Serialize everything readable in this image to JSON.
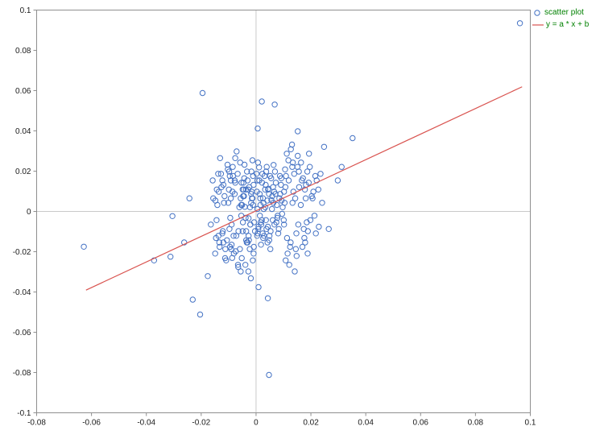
{
  "chart_data": {
    "type": "scatter",
    "title": "",
    "xlabel": "",
    "ylabel": "",
    "xlim": [
      -0.08,
      0.1
    ],
    "ylim": [
      -0.1,
      0.1
    ],
    "grid": "zero-lines-only",
    "legend_position": "top-right-outside",
    "legend_text_color": "#008000",
    "x_ticks": [
      -0.08,
      -0.06,
      -0.04,
      -0.02,
      0,
      0.02,
      0.04,
      0.06,
      0.08,
      0.1
    ],
    "x_tick_labels": [
      "-0.08",
      "-0.06",
      "-0.04",
      "-0.02",
      "0",
      "0.02",
      "0.04",
      "0.06",
      "0.08",
      "0.1"
    ],
    "y_ticks": [
      0.1,
      0.08,
      0.06,
      0.04,
      0.02,
      0,
      -0.02,
      -0.04,
      -0.06,
      -0.08,
      -0.1
    ],
    "y_tick_labels": [
      "0.1",
      "0.08",
      "0.06",
      "0.04",
      "0.02",
      "0",
      "-0.02",
      "-0.04",
      "-0.06",
      "-0.08",
      "-0.1"
    ],
    "series": [
      {
        "name": "scatter plot",
        "type": "scatter",
        "marker": "open-circle",
        "color": "#4472c4",
        "points": [
          [
            0.0962,
            0.0935
          ],
          [
            -0.0628,
            -0.0175
          ],
          [
            0.0047,
            -0.0812
          ],
          [
            -0.0195,
            0.0588
          ],
          [
            0.0021,
            0.0546
          ],
          [
            0.0068,
            0.0531
          ],
          [
            0.0352,
            0.0364
          ],
          [
            -0.0372,
            -0.0243
          ],
          [
            -0.0312,
            -0.0225
          ],
          [
            -0.0204,
            -0.0512
          ],
          [
            -0.0231,
            -0.0438
          ],
          [
            0.0043,
            -0.0431
          ],
          [
            -0.0305,
            -0.0023
          ],
          [
            0.0006,
            0.0412
          ],
          [
            0.0248,
            0.0321
          ],
          [
            -0.0262,
            -0.0154
          ],
          [
            0.0298,
            0.0154
          ],
          [
            -0.0243,
            0.0065
          ],
          [
            0.0152,
            0.0398
          ],
          [
            0.0009,
            -0.0376
          ],
          [
            -0.0176,
            -0.0321
          ],
          [
            0.0265,
            -0.0087
          ],
          [
            0.0312,
            0.0221
          ],
          [
            0.0005,
            0.0012
          ],
          [
            0.0021,
            -0.0043
          ],
          [
            -0.0013,
            0.0065
          ],
          [
            0.0034,
            0.0021
          ],
          [
            0.0008,
            -0.0087
          ],
          [
            0.0045,
            0.0113
          ],
          [
            -0.0027,
            -0.0034
          ],
          [
            0.0056,
            0.0056
          ],
          [
            0.0012,
            0.0154
          ],
          [
            -0.0041,
            0.0023
          ],
          [
            0.0067,
            -0.0065
          ],
          [
            0.0003,
            0.0098
          ],
          [
            0.0029,
            -0.0121
          ],
          [
            -0.0018,
            0.0043
          ],
          [
            0.0051,
            0.0176
          ],
          [
            0.0076,
            0.0032
          ],
          [
            -0.0036,
            -0.0098
          ],
          [
            0.0014,
            -0.0021
          ],
          [
            0.0088,
            0.0087
          ],
          [
            0.0042,
            -0.0154
          ],
          [
            -0.0009,
            0.0132
          ],
          [
            0.0061,
            -0.0043
          ],
          [
            0.0025,
            0.0065
          ],
          [
            -0.0049,
            0.0109
          ],
          [
            0.0095,
            -0.0012
          ],
          [
            0.0037,
            0.0198
          ],
          [
            0.0006,
            -0.0109
          ],
          [
            -0.0022,
            0.0021
          ],
          [
            0.0072,
            0.0143
          ],
          [
            0.0019,
            -0.0065
          ],
          [
            0.0104,
            0.0043
          ],
          [
            -0.0054,
            -0.0021
          ],
          [
            0.0047,
            0.0087
          ],
          [
            0.0011,
            0.0219
          ],
          [
            0.0083,
            -0.0087
          ],
          [
            -0.0031,
            0.0154
          ],
          [
            0.0058,
            0.0012
          ],
          [
            0.0026,
            -0.0132
          ],
          [
            -0.0007,
            -0.0054
          ],
          [
            0.0069,
            0.0198
          ],
          [
            0.0033,
            0.0109
          ],
          [
            0.0092,
            0.0165
          ],
          [
            -0.0044,
            0.0076
          ],
          [
            0.0016,
            0.0032
          ],
          [
            0.0053,
            -0.0098
          ],
          [
            0.0002,
            0.0187
          ],
          [
            0.0078,
            -0.0032
          ],
          [
            -0.0026,
            -0.0143
          ],
          [
            0.0041,
            0.0054
          ],
          [
            0.0107,
            0.0121
          ],
          [
            0.0009,
            -0.0076
          ],
          [
            0.0064,
            0.0231
          ],
          [
            -0.0016,
            0.0098
          ],
          [
            0.0036,
            -0.0043
          ],
          [
            0.0085,
            0.0065
          ],
          [
            0.0022,
            0.0143
          ],
          [
            -0.0051,
            0.0032
          ],
          [
            0.0049,
            -0.0121
          ],
          [
            0.0013,
            0.0087
          ],
          [
            0.0074,
            -0.0054
          ],
          [
            0.0031,
            0.0176
          ],
          [
            -0.0004,
            -0.0098
          ],
          [
            0.0097,
            0.0021
          ],
          [
            0.0044,
            0.0109
          ],
          [
            0.0018,
            -0.0165
          ],
          [
            0.0059,
            0.0076
          ],
          [
            -0.0033,
            0.0198
          ],
          [
            0.0027,
            0.0043
          ],
          [
            0.0081,
            -0.0109
          ],
          [
            0.0005,
            0.0154
          ],
          [
            0.0066,
            0.0098
          ],
          [
            -0.0021,
            -0.0065
          ],
          [
            0.0039,
            0.0221
          ],
          [
            0.0101,
            -0.0043
          ],
          [
            0.0015,
            0.0065
          ],
          [
            0.0052,
            -0.0187
          ],
          [
            -0.0046,
            0.0143
          ],
          [
            0.0028,
            0.0012
          ],
          [
            0.0087,
            0.0176
          ],
          [
            0.0043,
            -0.0076
          ],
          [
            -0.0011,
            0.0032
          ],
          [
            0.0062,
            0.0121
          ],
          [
            0.0024,
            -0.0109
          ],
          [
            0.0093,
            0.0054
          ],
          [
            0.0007,
            0.0243
          ],
          [
            -0.0038,
            -0.0032
          ],
          [
            0.0055,
            0.0165
          ],
          [
            0.0017,
            -0.0054
          ],
          [
            0.0071,
            0.0087
          ],
          [
            0.0035,
            0.0132
          ],
          [
            -0.0056,
            0.0065
          ],
          [
            0.0048,
            -0.0143
          ],
          [
            0.0102,
            0.0098
          ],
          [
            0.0023,
            0.0187
          ],
          [
            0.0079,
            -0.0021
          ],
          [
            0.0004,
            -0.0121
          ],
          [
            0.0063,
            0.0043
          ],
          [
            -0.0029,
            0.0109
          ],
          [
            0.0038,
            -0.0087
          ],
          [
            0.0091,
            0.0132
          ],
          [
            -0.0123,
            0.0154
          ],
          [
            0.0145,
            -0.0187
          ],
          [
            0.0178,
            0.0109
          ],
          [
            -0.0087,
            -0.0231
          ],
          [
            0.0134,
            0.0243
          ],
          [
            -0.0156,
            0.0065
          ],
          [
            0.0189,
            -0.0098
          ],
          [
            0.0112,
            0.0287
          ],
          [
            -0.0098,
            0.0198
          ],
          [
            0.0167,
            0.0154
          ],
          [
            0.0203,
            0.0076
          ],
          [
            -0.0134,
            -0.0154
          ],
          [
            0.0121,
            -0.0265
          ],
          [
            0.0156,
            0.0198
          ],
          [
            -0.0076,
            0.0265
          ],
          [
            0.0198,
            -0.0043
          ],
          [
            0.0109,
            0.0176
          ],
          [
            -0.0112,
            -0.0187
          ],
          [
            0.0143,
            0.0065
          ],
          [
            0.0221,
            0.0154
          ],
          [
            -0.0065,
            -0.0276
          ],
          [
            0.0132,
            0.0221
          ],
          [
            0.0187,
            0.0198
          ],
          [
            -0.0143,
            0.0109
          ],
          [
            0.0115,
            -0.0209
          ],
          [
            0.0176,
            -0.0132
          ],
          [
            -0.0092,
            0.0154
          ],
          [
            0.0209,
            0.0098
          ],
          [
            0.0127,
            0.0309
          ],
          [
            -0.0121,
            -0.0098
          ],
          [
            0.0154,
            -0.0065
          ],
          [
            0.0235,
            0.0187
          ],
          [
            -0.0078,
            0.0087
          ],
          [
            0.0141,
            -0.0298
          ],
          [
            0.0192,
            0.0143
          ],
          [
            -0.0165,
            -0.0065
          ],
          [
            0.0118,
            0.0254
          ],
          [
            0.0169,
            -0.0176
          ],
          [
            -0.0104,
            0.0232
          ],
          [
            0.0213,
            -0.0021
          ],
          [
            0.0126,
            -0.0154
          ],
          [
            -0.0138,
            0.0187
          ],
          [
            0.0181,
            0.0065
          ],
          [
            0.0108,
            -0.0243
          ],
          [
            -0.0089,
            -0.0165
          ],
          [
            0.0152,
            0.0276
          ],
          [
            0.0227,
            0.0109
          ],
          [
            -0.0117,
            0.0043
          ],
          [
            0.0139,
            0.0187
          ],
          [
            0.0174,
            -0.0087
          ],
          [
            -0.0071,
            0.0298
          ],
          [
            0.0196,
            0.0221
          ],
          [
            0.0113,
            -0.0132
          ],
          [
            -0.0149,
            -0.0209
          ],
          [
            0.0163,
            0.0032
          ],
          [
            0.0218,
            -0.0109
          ],
          [
            -0.0096,
            0.0176
          ],
          [
            0.0131,
            0.0332
          ],
          [
            0.0185,
            -0.0054
          ],
          [
            -0.0126,
            0.0121
          ],
          [
            0.0148,
            -0.0221
          ],
          [
            0.0106,
            0.0209
          ],
          [
            -0.0082,
            -0.0121
          ],
          [
            0.0171,
            0.0165
          ],
          [
            0.0241,
            0.0043
          ],
          [
            -0.0158,
            0.0154
          ],
          [
            0.0124,
            -0.0176
          ],
          [
            0.0193,
            0.0287
          ],
          [
            -0.0109,
            -0.0243
          ],
          [
            0.0157,
            0.0121
          ],
          [
            0.0102,
            -0.0065
          ],
          [
            -0.0131,
            0.0265
          ],
          [
            0.0179,
            -0.0154
          ],
          [
            0.0216,
            0.0176
          ],
          [
            -0.0074,
            -0.0198
          ],
          [
            0.0136,
            0.0098
          ],
          [
            0.0164,
            0.0243
          ],
          [
            -0.0146,
            -0.0132
          ],
          [
            0.0119,
            0.0154
          ],
          [
            0.0188,
            -0.0209
          ],
          [
            -0.0099,
            0.0109
          ],
          [
            0.0151,
            0.0221
          ],
          [
            0.0229,
            -0.0076
          ],
          [
            -0.0119,
            -0.0154
          ],
          [
            0.0133,
            0.0043
          ],
          [
            0.0182,
            0.0132
          ],
          [
            -0.0085,
            0.0221
          ],
          [
            0.0147,
            -0.0109
          ],
          [
            0.0206,
            0.0065
          ],
          [
            -0.0141,
            0.0032
          ],
          [
            -0.0034,
            -0.0154
          ],
          [
            -0.0067,
            0.0187
          ],
          [
            -0.0012,
            -0.0243
          ],
          [
            -0.0089,
            -0.0065
          ],
          [
            -0.0045,
            0.0109
          ],
          [
            -0.0023,
            -0.0187
          ],
          [
            -0.0101,
            0.0043
          ],
          [
            -0.0056,
            -0.0298
          ],
          [
            -0.0078,
            0.0154
          ],
          [
            -0.0015,
            0.0065
          ],
          [
            -0.0123,
            -0.0109
          ],
          [
            -0.0042,
            0.0232
          ],
          [
            -0.0095,
            -0.0176
          ],
          [
            -0.0061,
            0.0021
          ],
          [
            -0.0019,
            -0.0332
          ],
          [
            -0.0136,
            0.0098
          ],
          [
            -0.0048,
            -0.0054
          ],
          [
            -0.0084,
            0.0176
          ],
          [
            -0.0027,
            -0.0121
          ],
          [
            -0.0113,
            -0.0232
          ],
          [
            -0.0053,
            0.0143
          ],
          [
            -0.0008,
            -0.0176
          ],
          [
            -0.0092,
            0.0065
          ],
          [
            -0.0039,
            -0.0265
          ],
          [
            -0.0128,
            0.0187
          ],
          [
            -0.0064,
            -0.0098
          ],
          [
            -0.0017,
            0.0198
          ],
          [
            -0.0106,
            -0.0143
          ],
          [
            -0.0047,
            0.0076
          ],
          [
            -0.0081,
            -0.0209
          ],
          [
            -0.0025,
            0.0121
          ],
          [
            -0.0144,
            -0.0043
          ],
          [
            -0.0059,
            -0.0187
          ],
          [
            -0.0013,
            0.0254
          ],
          [
            -0.0097,
            -0.0087
          ],
          [
            -0.0036,
            -0.0143
          ],
          [
            -0.0119,
            0.0132
          ],
          [
            -0.0052,
            -0.0232
          ],
          [
            -0.0086,
            0.0098
          ],
          [
            -0.0021,
            -0.0065
          ],
          [
            -0.0133,
            -0.0176
          ],
          [
            -0.0043,
            0.0165
          ],
          [
            -0.0072,
            -0.0121
          ],
          [
            -0.0009,
            -0.0209
          ],
          [
            -0.0115,
            0.0076
          ],
          [
            -0.0058,
            0.0243
          ],
          [
            -0.0094,
            -0.0032
          ],
          [
            -0.0031,
            -0.0154
          ],
          [
            -0.0148,
            0.0054
          ],
          [
            -0.0066,
            -0.0265
          ],
          [
            -0.0018,
            0.0087
          ],
          [
            -0.0103,
            0.0209
          ],
          [
            -0.0049,
            -0.0098
          ],
          [
            -0.0076,
            0.0143
          ],
          [
            -0.0028,
            -0.0298
          ],
          [
            -0.0137,
            -0.0121
          ],
          [
            -0.0054,
            0.0032
          ],
          [
            -0.0011,
            0.0176
          ],
          [
            -0.0091,
            -0.0187
          ],
          [
            -0.0037,
            0.0109
          ]
        ]
      },
      {
        "name": "y = a * x + b",
        "type": "line",
        "color": "#d9534f",
        "a": 0.635,
        "b": 0.0003,
        "x_start": -0.062,
        "x_end": 0.097
      }
    ]
  }
}
